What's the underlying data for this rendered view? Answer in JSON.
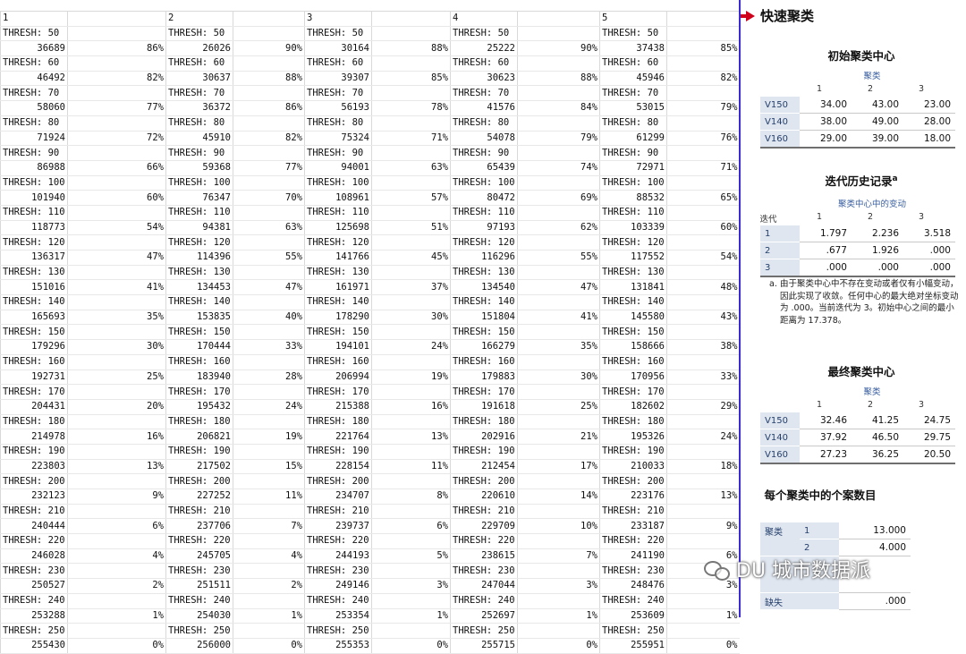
{
  "sheet": {
    "col_headers": [
      "1",
      "2",
      "3",
      "4",
      "5"
    ],
    "blocks": [
      {
        "label": "THRESH: 50",
        "vals": [
          [
            "36689",
            "86%"
          ],
          [
            "26026",
            "90%"
          ],
          [
            "30164",
            "88%"
          ],
          [
            "25222",
            "90%"
          ],
          [
            "37438",
            "85%"
          ]
        ]
      },
      {
        "label": "THRESH: 60",
        "vals": [
          [
            "46492",
            "82%"
          ],
          [
            "30637",
            "88%"
          ],
          [
            "39307",
            "85%"
          ],
          [
            "30623",
            "88%"
          ],
          [
            "45946",
            "82%"
          ]
        ]
      },
      {
        "label": "THRESH: 70",
        "vals": [
          [
            "58060",
            "77%"
          ],
          [
            "36372",
            "86%"
          ],
          [
            "56193",
            "78%"
          ],
          [
            "41576",
            "84%"
          ],
          [
            "53015",
            "79%"
          ]
        ]
      },
      {
        "label": "THRESH: 80",
        "vals": [
          [
            "71924",
            "72%"
          ],
          [
            "45910",
            "82%"
          ],
          [
            "75324",
            "71%"
          ],
          [
            "54078",
            "79%"
          ],
          [
            "61299",
            "76%"
          ]
        ]
      },
      {
        "label": "THRESH: 90",
        "vals": [
          [
            "86988",
            "66%"
          ],
          [
            "59368",
            "77%"
          ],
          [
            "94001",
            "63%"
          ],
          [
            "65439",
            "74%"
          ],
          [
            "72971",
            "71%"
          ]
        ]
      },
      {
        "label": "THRESH: 100",
        "vals": [
          [
            "101940",
            "60%"
          ],
          [
            "76347",
            "70%"
          ],
          [
            "108961",
            "57%"
          ],
          [
            "80472",
            "69%"
          ],
          [
            "88532",
            "65%"
          ]
        ]
      },
      {
        "label": "THRESH: 110",
        "vals": [
          [
            "118773",
            "54%"
          ],
          [
            "94381",
            "63%"
          ],
          [
            "125698",
            "51%"
          ],
          [
            "97193",
            "62%"
          ],
          [
            "103339",
            "60%"
          ]
        ]
      },
      {
        "label": "THRESH: 120",
        "vals": [
          [
            "136317",
            "47%"
          ],
          [
            "114396",
            "55%"
          ],
          [
            "141766",
            "45%"
          ],
          [
            "116296",
            "55%"
          ],
          [
            "117552",
            "54%"
          ]
        ]
      },
      {
        "label": "THRESH: 130",
        "vals": [
          [
            "151016",
            "41%"
          ],
          [
            "134453",
            "47%"
          ],
          [
            "161971",
            "37%"
          ],
          [
            "134540",
            "47%"
          ],
          [
            "131841",
            "48%"
          ]
        ]
      },
      {
        "label": "THRESH: 140",
        "vals": [
          [
            "165693",
            "35%"
          ],
          [
            "153835",
            "40%"
          ],
          [
            "178290",
            "30%"
          ],
          [
            "151804",
            "41%"
          ],
          [
            "145580",
            "43%"
          ]
        ]
      },
      {
        "label": "THRESH: 150",
        "vals": [
          [
            "179296",
            "30%"
          ],
          [
            "170444",
            "33%"
          ],
          [
            "194101",
            "24%"
          ],
          [
            "166279",
            "35%"
          ],
          [
            "158666",
            "38%"
          ]
        ]
      },
      {
        "label": "THRESH: 160",
        "vals": [
          [
            "192731",
            "25%"
          ],
          [
            "183940",
            "28%"
          ],
          [
            "206994",
            "19%"
          ],
          [
            "179883",
            "30%"
          ],
          [
            "170956",
            "33%"
          ]
        ]
      },
      {
        "label": "THRESH: 170",
        "vals": [
          [
            "204431",
            "20%"
          ],
          [
            "195432",
            "24%"
          ],
          [
            "215388",
            "16%"
          ],
          [
            "191618",
            "25%"
          ],
          [
            "182602",
            "29%"
          ]
        ]
      },
      {
        "label": "THRESH: 180",
        "vals": [
          [
            "214978",
            "16%"
          ],
          [
            "206821",
            "19%"
          ],
          [
            "221764",
            "13%"
          ],
          [
            "202916",
            "21%"
          ],
          [
            "195326",
            "24%"
          ]
        ]
      },
      {
        "label": "THRESH: 190",
        "vals": [
          [
            "223803",
            "13%"
          ],
          [
            "217502",
            "15%"
          ],
          [
            "228154",
            "11%"
          ],
          [
            "212454",
            "17%"
          ],
          [
            "210033",
            "18%"
          ]
        ]
      },
      {
        "label": "THRESH: 200",
        "vals": [
          [
            "232123",
            "9%"
          ],
          [
            "227252",
            "11%"
          ],
          [
            "234707",
            "8%"
          ],
          [
            "220610",
            "14%"
          ],
          [
            "223176",
            "13%"
          ]
        ]
      },
      {
        "label": "THRESH: 210",
        "vals": [
          [
            "240444",
            "6%"
          ],
          [
            "237706",
            "7%"
          ],
          [
            "239737",
            "6%"
          ],
          [
            "229709",
            "10%"
          ],
          [
            "233187",
            "9%"
          ]
        ]
      },
      {
        "label": "THRESH: 220",
        "vals": [
          [
            "246028",
            "4%"
          ],
          [
            "245705",
            "4%"
          ],
          [
            "244193",
            "5%"
          ],
          [
            "238615",
            "7%"
          ],
          [
            "241190",
            "6%"
          ]
        ]
      },
      {
        "label": "THRESH: 230",
        "vals": [
          [
            "250527",
            "2%"
          ],
          [
            "251511",
            "2%"
          ],
          [
            "249146",
            "3%"
          ],
          [
            "247044",
            "3%"
          ],
          [
            "248476",
            "3%"
          ]
        ]
      },
      {
        "label": "THRESH: 240",
        "vals": [
          [
            "253288",
            "1%"
          ],
          [
            "254030",
            "1%"
          ],
          [
            "253354",
            "1%"
          ],
          [
            "252697",
            "1%"
          ],
          [
            "253609",
            "1%"
          ]
        ]
      },
      {
        "label": "THRESH: 250",
        "vals": [
          [
            "255430",
            "0%"
          ],
          [
            "256000",
            "0%"
          ],
          [
            "255353",
            "0%"
          ],
          [
            "255715",
            "0%"
          ],
          [
            "255951",
            "0%"
          ]
        ]
      }
    ]
  },
  "spss": {
    "page_title": "快速聚类",
    "initial": {
      "title": "初始聚类中心",
      "sub": "聚类",
      "cols": [
        "1",
        "2",
        "3"
      ],
      "rows": [
        {
          "label": "V150",
          "vals": [
            "34.00",
            "43.00",
            "23.00"
          ]
        },
        {
          "label": "V140",
          "vals": [
            "38.00",
            "49.00",
            "28.00"
          ]
        },
        {
          "label": "V160",
          "vals": [
            "29.00",
            "39.00",
            "18.00"
          ]
        }
      ]
    },
    "history": {
      "title": "迭代历史记录",
      "sup": "a",
      "sub": "聚类中心中的变动",
      "iter_label": "迭代",
      "cols": [
        "1",
        "2",
        "3"
      ],
      "rows": [
        {
          "label": "1",
          "vals": [
            "1.797",
            "2.236",
            "3.518"
          ]
        },
        {
          "label": "2",
          "vals": [
            ".677",
            "1.926",
            ".000"
          ]
        },
        {
          "label": "3",
          "vals": [
            ".000",
            ".000",
            ".000"
          ]
        }
      ],
      "foot_mark": "a.",
      "footnote": "由于聚类中心中不存在变动或者仅有小幅变动，因此实现了收敛。任何中心的最大绝对坐标变动为 .000。当前迭代为 3。初始中心之间的最小距离为 17.378。"
    },
    "final": {
      "title": "最终聚类中心",
      "sub": "聚类",
      "cols": [
        "1",
        "2",
        "3"
      ],
      "rows": [
        {
          "label": "V150",
          "vals": [
            "32.46",
            "41.25",
            "24.75"
          ]
        },
        {
          "label": "V140",
          "vals": [
            "37.92",
            "46.50",
            "29.75"
          ]
        },
        {
          "label": "V160",
          "vals": [
            "27.23",
            "36.25",
            "20.50"
          ]
        }
      ]
    },
    "counts": {
      "title": "每个聚类中的个案数目",
      "cluster_label": "聚类",
      "rows": [
        {
          "k": "1",
          "v": "13.000"
        },
        {
          "k": "2",
          "v": "4.000"
        }
      ],
      "missing_label": "缺失",
      "missing_val": ".000"
    }
  },
  "watermark": {
    "text": "DU  城市数据派"
  }
}
